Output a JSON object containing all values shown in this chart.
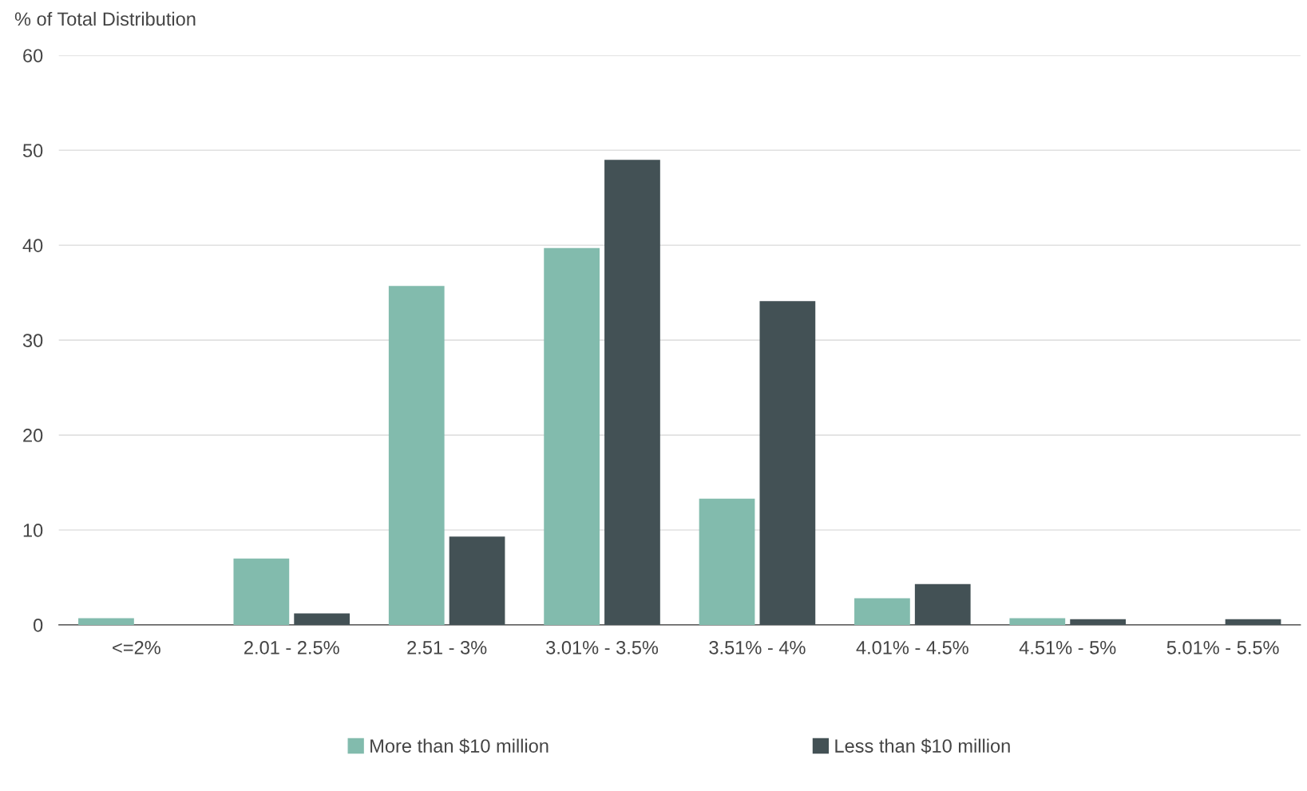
{
  "chart_data": {
    "type": "bar",
    "ylabel": "% of Total Distribution",
    "categories": [
      "<=2%",
      "2.01 - 2.5%",
      "2.51 - 3%",
      "3.01% - 3.5%",
      "3.51% - 4%",
      "4.01% - 4.5%",
      "4.51% - 5%",
      "5.01% - 5.5%"
    ],
    "series": [
      {
        "name": "More than $10 million",
        "color": "#82bbad",
        "values": [
          0.7,
          7.0,
          35.7,
          39.7,
          13.3,
          2.8,
          0.7,
          0
        ]
      },
      {
        "name": "Less than $10 million",
        "color": "#435155",
        "values": [
          0,
          1.2,
          9.3,
          49.0,
          34.1,
          4.3,
          0.6,
          0.6
        ]
      }
    ],
    "ylim": [
      0,
      60
    ],
    "yticks": [
      0,
      10,
      20,
      30,
      40,
      50,
      60
    ],
    "grid": "y",
    "legend": "bottom"
  }
}
